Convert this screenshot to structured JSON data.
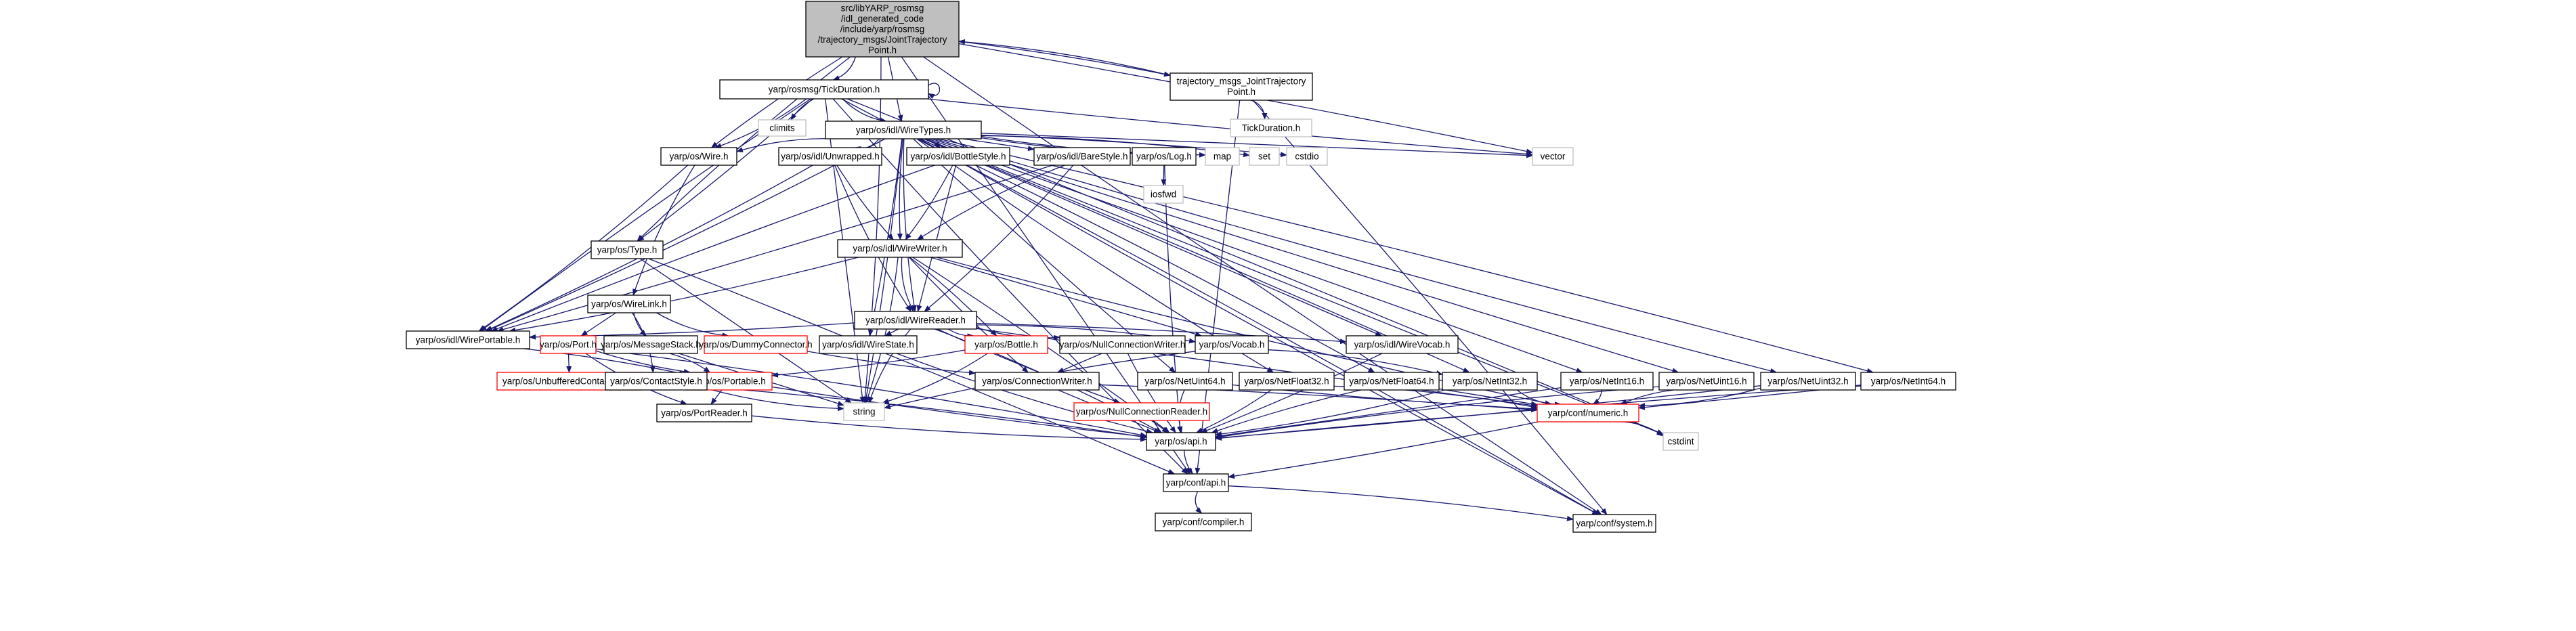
{
  "diagram": {
    "nodes": [
      {
        "id": "root",
        "lines": [
          "src/libYARP_rosmsg",
          "/idl_generated_code",
          "/include/yarp/rosmsg",
          "/trajectory_msgs/JointTrajectory",
          "Point.h"
        ],
        "style": "root"
      },
      {
        "id": "tickdur",
        "lines": [
          "yarp/rosmsg/TickDuration.h"
        ],
        "style": "normal"
      },
      {
        "id": "tmjtp",
        "lines": [
          "trajectory_msgs_JointTrajectory",
          "Point.h"
        ],
        "style": "normal"
      },
      {
        "id": "tickdur2",
        "lines": [
          "TickDuration.h"
        ],
        "style": "gray"
      },
      {
        "id": "climits",
        "lines": [
          "climits"
        ],
        "style": "gray"
      },
      {
        "id": "wiretypes",
        "lines": [
          "yarp/os/idl/WireTypes.h"
        ],
        "style": "normal"
      },
      {
        "id": "wire",
        "lines": [
          "yarp/os/Wire.h"
        ],
        "style": "normal"
      },
      {
        "id": "type",
        "lines": [
          "yarp/os/Type.h"
        ],
        "style": "normal"
      },
      {
        "id": "unwrapped",
        "lines": [
          "yarp/os/idl/Unwrapped.h"
        ],
        "style": "normal"
      },
      {
        "id": "bottlestyle",
        "lines": [
          "yarp/os/idl/BottleStyle.h"
        ],
        "style": "normal"
      },
      {
        "id": "barestyle",
        "lines": [
          "yarp/os/idl/BareStyle.h"
        ],
        "style": "normal"
      },
      {
        "id": "log",
        "lines": [
          "yarp/os/Log.h"
        ],
        "style": "normal"
      },
      {
        "id": "map",
        "lines": [
          "map"
        ],
        "style": "gray"
      },
      {
        "id": "set",
        "lines": [
          "set"
        ],
        "style": "gray"
      },
      {
        "id": "cstdio",
        "lines": [
          "cstdio"
        ],
        "style": "gray"
      },
      {
        "id": "vector",
        "lines": [
          "vector"
        ],
        "style": "gray"
      },
      {
        "id": "iosfwd",
        "lines": [
          "iosfwd"
        ],
        "style": "gray"
      },
      {
        "id": "wirewriter",
        "lines": [
          "yarp/os/idl/WireWriter.h"
        ],
        "style": "normal"
      },
      {
        "id": "wirelink",
        "lines": [
          "yarp/os/WireLink.h"
        ],
        "style": "normal"
      },
      {
        "id": "wirereader",
        "lines": [
          "yarp/os/idl/WireReader.h"
        ],
        "style": "normal"
      },
      {
        "id": "wireportable",
        "lines": [
          "yarp/os/idl/WirePortable.h"
        ],
        "style": "normal"
      },
      {
        "id": "port",
        "lines": [
          "yarp/os/Port.h"
        ],
        "style": "red"
      },
      {
        "id": "msgstack",
        "lines": [
          "yarp/os/MessageStack.h"
        ],
        "style": "normal"
      },
      {
        "id": "dummyconn",
        "lines": [
          "yarp/os/DummyConnector.h"
        ],
        "style": "red"
      },
      {
        "id": "wirestate",
        "lines": [
          "yarp/os/idl/WireState.h"
        ],
        "style": "normal"
      },
      {
        "id": "bottle",
        "lines": [
          "yarp/os/Bottle.h"
        ],
        "style": "red"
      },
      {
        "id": "nullconnwriter",
        "lines": [
          "yarp/os/NullConnectionWriter.h"
        ],
        "style": "normal"
      },
      {
        "id": "vocab",
        "lines": [
          "yarp/os/Vocab.h"
        ],
        "style": "normal"
      },
      {
        "id": "wirevocab",
        "lines": [
          "yarp/os/idl/WireVocab.h"
        ],
        "style": "normal"
      },
      {
        "id": "unbuffered",
        "lines": [
          "yarp/os/UnbufferedContactable.h"
        ],
        "style": "red"
      },
      {
        "id": "portable",
        "lines": [
          "yarp/os/Portable.h"
        ],
        "style": "red"
      },
      {
        "id": "contactstyle",
        "lines": [
          "yarp/os/ContactStyle.h"
        ],
        "style": "normal"
      },
      {
        "id": "connwriter",
        "lines": [
          "yarp/os/ConnectionWriter.h"
        ],
        "style": "normal"
      },
      {
        "id": "netuint64",
        "lines": [
          "yarp/os/NetUint64.h"
        ],
        "style": "normal"
      },
      {
        "id": "netfloat32",
        "lines": [
          "yarp/os/NetFloat32.h"
        ],
        "style": "normal"
      },
      {
        "id": "netfloat64",
        "lines": [
          "yarp/os/NetFloat64.h"
        ],
        "style": "normal"
      },
      {
        "id": "netint32",
        "lines": [
          "yarp/os/NetInt32.h"
        ],
        "style": "normal"
      },
      {
        "id": "netint16",
        "lines": [
          "yarp/os/NetInt16.h"
        ],
        "style": "normal"
      },
      {
        "id": "netuint16",
        "lines": [
          "yarp/os/NetUint16.h"
        ],
        "style": "normal"
      },
      {
        "id": "netuint32",
        "lines": [
          "yarp/os/NetUint32.h"
        ],
        "style": "normal"
      },
      {
        "id": "netint64",
        "lines": [
          "yarp/os/NetInt64.h"
        ],
        "style": "normal"
      },
      {
        "id": "string",
        "lines": [
          "string"
        ],
        "style": "gray"
      },
      {
        "id": "portreader",
        "lines": [
          "yarp/os/PortReader.h"
        ],
        "style": "normal"
      },
      {
        "id": "numeric",
        "lines": [
          "yarp/conf/numeric.h"
        ],
        "style": "red"
      },
      {
        "id": "nullconnreader",
        "lines": [
          "yarp/os/NullConnectionReader.h"
        ],
        "style": "red"
      },
      {
        "id": "osapi",
        "lines": [
          "yarp/os/api.h"
        ],
        "style": "normal"
      },
      {
        "id": "cstdint",
        "lines": [
          "cstdint"
        ],
        "style": "gray"
      },
      {
        "id": "confapi",
        "lines": [
          "yarp/conf/api.h"
        ],
        "style": "normal"
      },
      {
        "id": "compiler",
        "lines": [
          "yarp/conf/compiler.h"
        ],
        "style": "normal"
      },
      {
        "id": "system",
        "lines": [
          "yarp/conf/system.h"
        ],
        "style": "normal"
      }
    ],
    "edges": [
      [
        "root",
        "tickdur"
      ],
      [
        "root",
        "tmjtp"
      ],
      [
        "root",
        "wiretypes"
      ],
      [
        "root",
        "wire"
      ],
      [
        "root",
        "type"
      ],
      [
        "root",
        "string"
      ],
      [
        "root",
        "vector"
      ],
      [
        "root",
        "confapi"
      ],
      [
        "root",
        "system"
      ],
      [
        "tmjtp",
        "root"
      ],
      [
        "tmjtp",
        "tickdur2"
      ],
      [
        "tmjtp",
        "system"
      ],
      [
        "tmjtp",
        "confapi"
      ],
      [
        "tickdur",
        "climits"
      ],
      [
        "tickdur",
        "wiretypes"
      ],
      [
        "tickdur",
        "wire"
      ],
      [
        "tickdur",
        "type"
      ],
      [
        "tickdur",
        "string"
      ],
      [
        "tickdur",
        "vector"
      ],
      [
        "tickdur",
        "confapi"
      ],
      [
        "tickdur",
        "system"
      ],
      [
        "tickdur",
        "cstdint"
      ],
      [
        "tickdur",
        "tickdur"
      ],
      [
        "tickdur",
        "wireportable"
      ],
      [
        "wiretypes",
        "wire"
      ],
      [
        "wiretypes",
        "unwrapped"
      ],
      [
        "wiretypes",
        "bottlestyle"
      ],
      [
        "wiretypes",
        "barestyle"
      ],
      [
        "wiretypes",
        "log"
      ],
      [
        "wiretypes",
        "map"
      ],
      [
        "wiretypes",
        "set"
      ],
      [
        "wiretypes",
        "cstdio"
      ],
      [
        "wiretypes",
        "vector"
      ],
      [
        "wiretypes",
        "wirewriter"
      ],
      [
        "wiretypes",
        "wirereader"
      ],
      [
        "wiretypes",
        "wireportable"
      ],
      [
        "wiretypes",
        "wirestate"
      ],
      [
        "wiretypes",
        "wirevocab"
      ],
      [
        "wiretypes",
        "netuint64"
      ],
      [
        "wiretypes",
        "netfloat32"
      ],
      [
        "wiretypes",
        "netfloat64"
      ],
      [
        "wiretypes",
        "netint32"
      ],
      [
        "wiretypes",
        "netint16"
      ],
      [
        "wiretypes",
        "netuint16"
      ],
      [
        "wiretypes",
        "netuint32"
      ],
      [
        "wiretypes",
        "netint64"
      ],
      [
        "wiretypes",
        "string"
      ],
      [
        "wiretypes",
        "cstdint"
      ],
      [
        "wiretypes",
        "system"
      ],
      [
        "wire",
        "wirelink"
      ],
      [
        "wire",
        "wireportable"
      ],
      [
        "type",
        "confapi"
      ],
      [
        "type",
        "string"
      ],
      [
        "unwrapped",
        "wirewriter"
      ],
      [
        "unwrapped",
        "wirereader"
      ],
      [
        "unwrapped",
        "wireportable"
      ],
      [
        "bottlestyle",
        "wirewriter"
      ],
      [
        "bottlestyle",
        "wirereader"
      ],
      [
        "bottlestyle",
        "wireportable"
      ],
      [
        "barestyle",
        "wirewriter"
      ],
      [
        "barestyle",
        "wirereader"
      ],
      [
        "barestyle",
        "wireportable"
      ],
      [
        "log",
        "iosfwd"
      ],
      [
        "log",
        "osapi"
      ],
      [
        "wirewriter",
        "wirereader"
      ],
      [
        "wirewriter",
        "wireportable"
      ],
      [
        "wirewriter",
        "bottle"
      ],
      [
        "wirewriter",
        "vocab"
      ],
      [
        "wirewriter",
        "connwriter"
      ],
      [
        "wirewriter",
        "numeric"
      ],
      [
        "wirewriter",
        "string"
      ],
      [
        "wirewriter",
        "osapi"
      ],
      [
        "wirelink",
        "port"
      ],
      [
        "wirelink",
        "msgstack"
      ],
      [
        "wirelink",
        "dummyconn"
      ],
      [
        "wirelink",
        "contactstyle"
      ],
      [
        "wirereader",
        "wireportable"
      ],
      [
        "wirereader",
        "wirestate"
      ],
      [
        "wirereader",
        "bottle"
      ],
      [
        "wirereader",
        "nullconnwriter"
      ],
      [
        "wirereader",
        "vocab"
      ],
      [
        "wirereader",
        "wirevocab"
      ],
      [
        "wirereader",
        "numeric"
      ],
      [
        "wirereader",
        "nullconnreader"
      ],
      [
        "wirereader",
        "string"
      ],
      [
        "wirereader",
        "osapi"
      ],
      [
        "wireportable",
        "portable"
      ],
      [
        "port",
        "unbuffered"
      ],
      [
        "port",
        "portable"
      ],
      [
        "port",
        "portreader"
      ],
      [
        "port",
        "osapi"
      ],
      [
        "msgstack",
        "portable"
      ],
      [
        "msgstack",
        "string"
      ],
      [
        "dummyconn",
        "connwriter"
      ],
      [
        "wirestate",
        "osapi"
      ],
      [
        "bottle",
        "string"
      ],
      [
        "bottle",
        "portable"
      ],
      [
        "nullconnwriter",
        "connwriter"
      ],
      [
        "nullconnwriter",
        "osapi"
      ],
      [
        "vocab",
        "string"
      ],
      [
        "vocab",
        "netint32"
      ],
      [
        "wirevocab",
        "osapi"
      ],
      [
        "portable",
        "portreader"
      ],
      [
        "portable",
        "osapi"
      ],
      [
        "contactstyle",
        "string"
      ],
      [
        "contactstyle",
        "osapi"
      ],
      [
        "connwriter",
        "numeric"
      ],
      [
        "connwriter",
        "osapi"
      ],
      [
        "netuint64",
        "numeric"
      ],
      [
        "netuint64",
        "osapi"
      ],
      [
        "netfloat32",
        "numeric"
      ],
      [
        "netfloat32",
        "osapi"
      ],
      [
        "netfloat64",
        "numeric"
      ],
      [
        "netfloat64",
        "osapi"
      ],
      [
        "netint32",
        "numeric"
      ],
      [
        "netint32",
        "osapi"
      ],
      [
        "netint16",
        "numeric"
      ],
      [
        "netint16",
        "osapi"
      ],
      [
        "netuint16",
        "numeric"
      ],
      [
        "netuint16",
        "osapi"
      ],
      [
        "netuint32",
        "numeric"
      ],
      [
        "netuint32",
        "osapi"
      ],
      [
        "netint64",
        "numeric"
      ],
      [
        "netint64",
        "osapi"
      ],
      [
        "portreader",
        "osapi"
      ],
      [
        "numeric",
        "cstdint"
      ],
      [
        "numeric",
        "confapi"
      ],
      [
        "nullconnreader",
        "osapi"
      ],
      [
        "osapi",
        "confapi"
      ],
      [
        "confapi",
        "compiler"
      ],
      [
        "confapi",
        "system"
      ]
    ]
  }
}
